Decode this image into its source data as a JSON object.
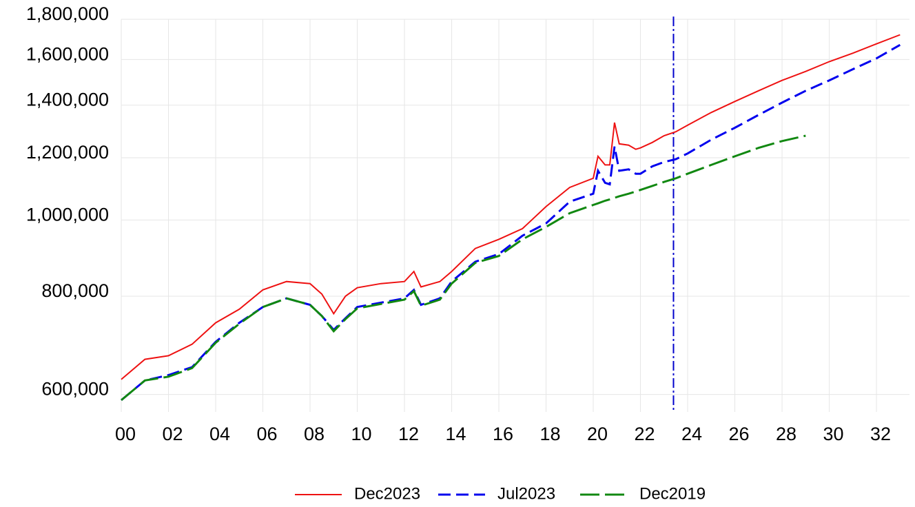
{
  "chart_data": {
    "type": "line",
    "log_y": true,
    "grid": true,
    "legend": "bottom",
    "x": [
      2000,
      2001,
      2002,
      2003,
      2004,
      2005,
      2006,
      2007,
      2008,
      2008.5,
      2009,
      2009.5,
      2010,
      2011,
      2012,
      2012.4,
      2012.7,
      2013.5,
      2014,
      2015,
      2016,
      2017,
      2018,
      2019,
      2020,
      2020.2,
      2020.5,
      2020.7,
      2020.9,
      2021.1,
      2021.5,
      2021.8,
      2022,
      2022.5,
      2023,
      2023.5,
      2024,
      2025,
      2026,
      2027,
      2028,
      2029,
      2030,
      2031,
      2032,
      2033
    ],
    "series": [
      {
        "name": "Dec2023",
        "color": "#ee1111",
        "dash": "none",
        "values": [
          627000,
          665000,
          672000,
          695000,
          740000,
          770000,
          815000,
          835000,
          830000,
          805000,
          760000,
          800000,
          820000,
          830000,
          835000,
          860000,
          822000,
          835000,
          860000,
          920000,
          945000,
          975000,
          1040000,
          1100000,
          1130000,
          1205000,
          1175000,
          1175000,
          1330000,
          1250000,
          1245000,
          1230000,
          1235000,
          1255000,
          1280000,
          1295000,
          1320000,
          1370000,
          1415000,
          1460000,
          1505000,
          1545000,
          1590000,
          1630000,
          1675000,
          1720000
        ]
      },
      {
        "name": "Jul2023",
        "color": "#0000ee",
        "dash": "18,8",
        "values": [
          590000,
          625000,
          635000,
          650000,
          700000,
          740000,
          775000,
          795000,
          780000,
          755000,
          725000,
          750000,
          775000,
          785000,
          795000,
          815000,
          780000,
          795000,
          835000,
          885000,
          905000,
          955000,
          990000,
          1055000,
          1080000,
          1155000,
          1115000,
          1110000,
          1240000,
          1155000,
          1160000,
          1145000,
          1145000,
          1170000,
          1185000,
          1195000,
          1215000,
          1265000,
          1310000,
          1360000,
          1410000,
          1460000,
          1505000,
          1555000,
          1605000,
          1670000
        ]
      },
      {
        "name": "Dec2019",
        "color": "#118811",
        "dash": "28,8",
        "values": [
          590000,
          625000,
          632000,
          648000,
          698000,
          738000,
          775000,
          795000,
          780000,
          755000,
          722000,
          748000,
          772000,
          782000,
          792000,
          812000,
          778000,
          792000,
          830000,
          882000,
          900000,
          945000,
          980000,
          1020000,
          1045000,
          1050000,
          1058000,
          1062000,
          1067000,
          1072000,
          1080000,
          1087000,
          1092000,
          1105000,
          1118000,
          1130000,
          1145000,
          1175000,
          1205000,
          1235000,
          1260000,
          1280000,
          null,
          null,
          null,
          null
        ]
      }
    ],
    "vline": 2023.4,
    "vline_color": "#0000cc",
    "xlim": [
      2000,
      2033.4
    ],
    "xticks": [
      {
        "value": 2000,
        "label": "00"
      },
      {
        "value": 2002,
        "label": "02"
      },
      {
        "value": 2004,
        "label": "04"
      },
      {
        "value": 2006,
        "label": "06"
      },
      {
        "value": 2008,
        "label": "08"
      },
      {
        "value": 2010,
        "label": "10"
      },
      {
        "value": 2012,
        "label": "12"
      },
      {
        "value": 2014,
        "label": "14"
      },
      {
        "value": 2016,
        "label": "16"
      },
      {
        "value": 2018,
        "label": "18"
      },
      {
        "value": 2020,
        "label": "20"
      },
      {
        "value": 2022,
        "label": "22"
      },
      {
        "value": 2024,
        "label": "24"
      },
      {
        "value": 2026,
        "label": "26"
      },
      {
        "value": 2028,
        "label": "28"
      },
      {
        "value": 2030,
        "label": "30"
      },
      {
        "value": 2032,
        "label": "32"
      }
    ],
    "ylim": [
      570000,
      1800000
    ],
    "yticks": [
      {
        "value": 600000,
        "label": "600,000"
      },
      {
        "value": 800000,
        "label": "800,000"
      },
      {
        "value": 1000000,
        "label": "1,000,000"
      },
      {
        "value": 1200000,
        "label": "1,200,000"
      },
      {
        "value": 1400000,
        "label": "1,400,000"
      },
      {
        "value": 1600000,
        "label": "1,600,000"
      },
      {
        "value": 1800000,
        "label": "1,800,000"
      }
    ]
  }
}
